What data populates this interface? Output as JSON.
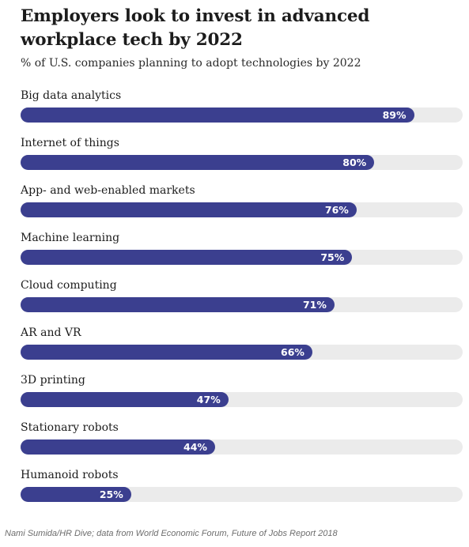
{
  "chart_data": {
    "type": "bar",
    "title": "Employers look to invest in advanced workplace tech by 2022",
    "subtitle": "% of U.S. companies planning to adopt technologies by 2022",
    "categories": [
      "Big data analytics",
      "Internet of things",
      "App- and web-enabled markets",
      "Machine learning",
      "Cloud computing",
      "AR and VR",
      "3D printing",
      "Stationary robots",
      "Humanoid robots"
    ],
    "values": [
      89,
      80,
      76,
      75,
      71,
      66,
      47,
      44,
      25
    ],
    "value_labels": [
      "89%",
      "80%",
      "76%",
      "75%",
      "71%",
      "66%",
      "47%",
      "44%",
      "25%"
    ],
    "xlim": [
      0,
      100
    ],
    "orientation": "horizontal",
    "bar_color": "#3b3f8f",
    "track_color": "#ebebeb"
  },
  "source": "Nami Sumida/HR Dive; data from World Economic Forum, Future of Jobs Report 2018"
}
